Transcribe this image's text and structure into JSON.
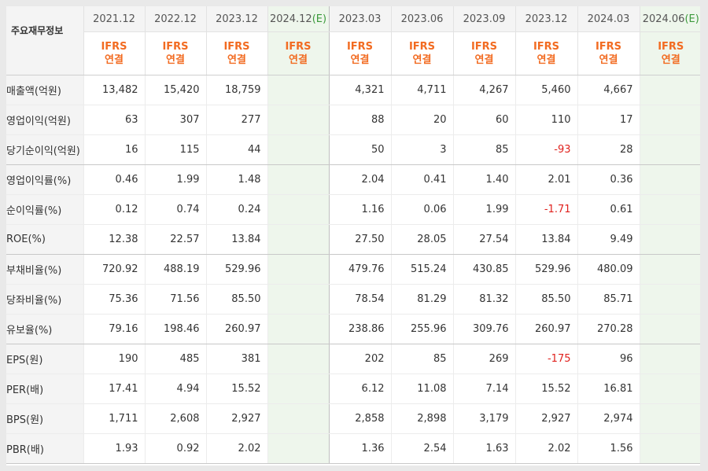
{
  "header": {
    "title": "주요재무정보",
    "annual_periods": [
      "2021.12",
      "2022.12",
      "2023.12",
      "2024.12"
    ],
    "quarter_periods": [
      "2023.03",
      "2023.06",
      "2023.09",
      "2023.12",
      "2024.03",
      "2024.06"
    ],
    "estimate_mark": "(E)",
    "standard": "IFRS",
    "basis": "연결"
  },
  "rows": [
    {
      "label": "매출액(억원)",
      "annual": [
        "13,482",
        "15,420",
        "18,759",
        ""
      ],
      "quarter": [
        "4,321",
        "4,711",
        "4,267",
        "5,460",
        "4,667",
        ""
      ]
    },
    {
      "label": "영업이익(억원)",
      "annual": [
        "63",
        "307",
        "277",
        ""
      ],
      "quarter": [
        "88",
        "20",
        "60",
        "110",
        "17",
        ""
      ]
    },
    {
      "label": "당기순이익(억원)",
      "annual": [
        "16",
        "115",
        "44",
        ""
      ],
      "quarter": [
        "50",
        "3",
        "85",
        "-93",
        "28",
        ""
      ]
    },
    {
      "label": "영업이익률(%)",
      "annual": [
        "0.46",
        "1.99",
        "1.48",
        ""
      ],
      "quarter": [
        "2.04",
        "0.41",
        "1.40",
        "2.01",
        "0.36",
        ""
      ]
    },
    {
      "label": "순이익률(%)",
      "annual": [
        "0.12",
        "0.74",
        "0.24",
        ""
      ],
      "quarter": [
        "1.16",
        "0.06",
        "1.99",
        "-1.71",
        "0.61",
        ""
      ]
    },
    {
      "label": "ROE(%)",
      "annual": [
        "12.38",
        "22.57",
        "13.84",
        ""
      ],
      "quarter": [
        "27.50",
        "28.05",
        "27.54",
        "13.84",
        "9.49",
        ""
      ]
    },
    {
      "label": "부채비율(%)",
      "annual": [
        "720.92",
        "488.19",
        "529.96",
        ""
      ],
      "quarter": [
        "479.76",
        "515.24",
        "430.85",
        "529.96",
        "480.09",
        ""
      ]
    },
    {
      "label": "당좌비율(%)",
      "annual": [
        "75.36",
        "71.56",
        "85.50",
        ""
      ],
      "quarter": [
        "78.54",
        "81.29",
        "81.32",
        "85.50",
        "85.71",
        ""
      ]
    },
    {
      "label": "유보율(%)",
      "annual": [
        "79.16",
        "198.46",
        "260.97",
        ""
      ],
      "quarter": [
        "238.86",
        "255.96",
        "309.76",
        "260.97",
        "270.28",
        ""
      ]
    },
    {
      "label": "EPS(원)",
      "annual": [
        "190",
        "485",
        "381",
        ""
      ],
      "quarter": [
        "202",
        "85",
        "269",
        "-175",
        "96",
        ""
      ]
    },
    {
      "label": "PER(배)",
      "annual": [
        "17.41",
        "4.94",
        "15.52",
        ""
      ],
      "quarter": [
        "6.12",
        "11.08",
        "7.14",
        "15.52",
        "16.81",
        ""
      ]
    },
    {
      "label": "BPS(원)",
      "annual": [
        "1,711",
        "2,608",
        "2,927",
        ""
      ],
      "quarter": [
        "2,858",
        "2,898",
        "3,179",
        "2,927",
        "2,974",
        ""
      ]
    },
    {
      "label": "PBR(배)",
      "annual": [
        "1.93",
        "0.92",
        "2.02",
        ""
      ],
      "quarter": [
        "1.36",
        "2.54",
        "1.63",
        "2.02",
        "1.56",
        ""
      ]
    }
  ],
  "colors": {
    "accent": "#f26b21",
    "negative": "#e0221e",
    "estimate_bg": "#eef6ec",
    "estimate_mark": "#3c9a3c"
  }
}
